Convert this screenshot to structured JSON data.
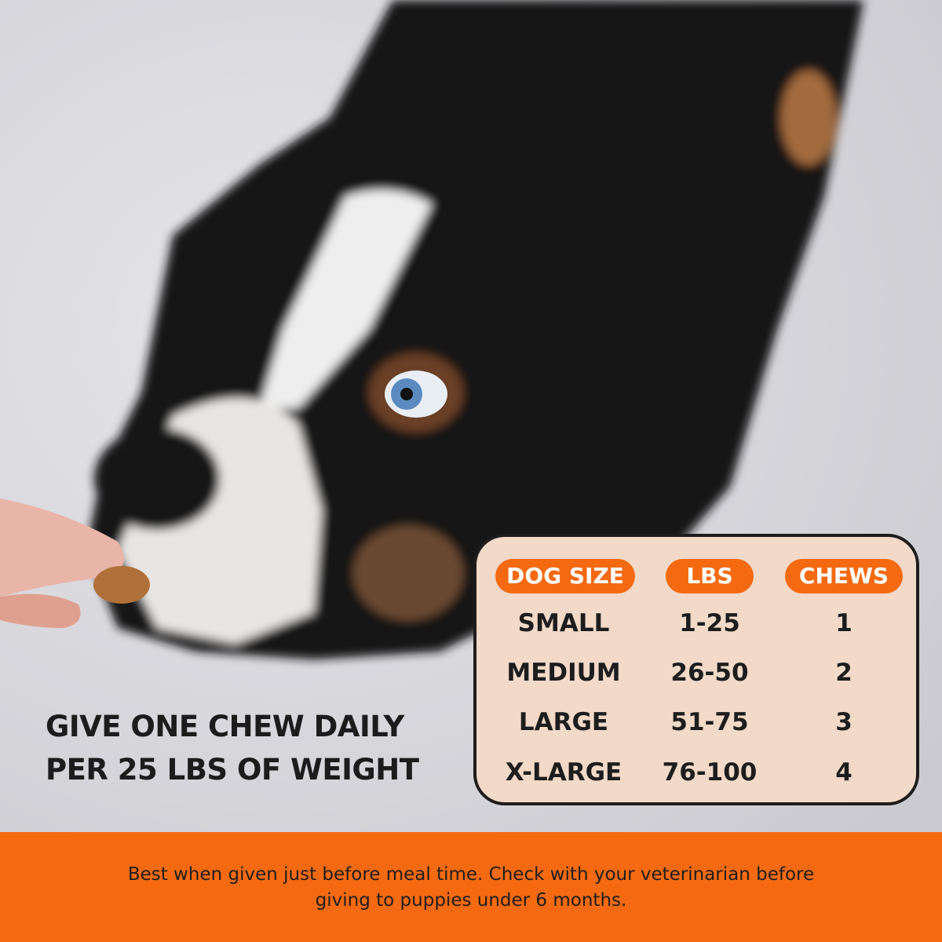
{
  "headline": {
    "line1": "GIVE ONE CHEW DAILY",
    "line2": "PER 25 LBS OF WEIGHT"
  },
  "table": {
    "headers": [
      "DOG SIZE",
      "LBS",
      "CHEWS"
    ],
    "rows": [
      [
        "SMALL",
        "1-25",
        "1"
      ],
      [
        "MEDIUM",
        "26-50",
        "2"
      ],
      [
        "LARGE",
        "51-75",
        "3"
      ],
      [
        "X-LARGE",
        "76-100",
        "4"
      ]
    ]
  },
  "footer": {
    "line1": "Best when given just before meal time. Check with your veterinarian before",
    "line2": "giving to puppies under 6 months."
  },
  "colors": {
    "accent": "#f56a10",
    "table_bg": "#f2d9c8",
    "text": "#1d1d1d"
  }
}
